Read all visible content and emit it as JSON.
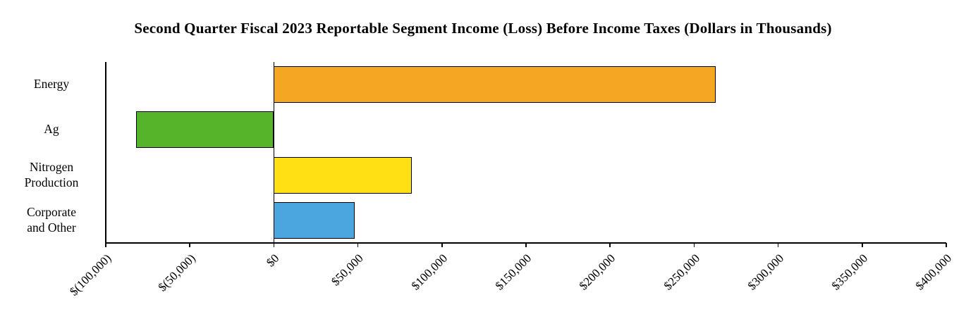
{
  "chart_data": {
    "type": "bar",
    "orientation": "horizontal",
    "title": "Second Quarter Fiscal 2023 Reportable Segment Income (Loss) Before Income Taxes (Dollars in Thousands)",
    "categories": [
      "Energy",
      "Ag",
      "Nitrogen Production",
      "Corporate and Other"
    ],
    "category_label_lines": [
      [
        "Energy"
      ],
      [
        "Ag"
      ],
      [
        "Nitrogen",
        "Production"
      ],
      [
        "Corporate",
        "and Other"
      ]
    ],
    "values": [
      263000,
      -82000,
      82000,
      48000
    ],
    "bar_colors": [
      "#F5A623",
      "#56B42B",
      "#FFE014",
      "#4BA6DF"
    ],
    "bar_border_color": "#000000",
    "xlabel": "",
    "ylabel": "",
    "xlim": [
      -100000,
      400000
    ],
    "tick_values": [
      -100000,
      -50000,
      0,
      50000,
      100000,
      150000,
      200000,
      250000,
      300000,
      350000,
      400000
    ],
    "tick_labels": [
      "$(100,000)",
      "$(50,000)",
      "$0",
      "$50,000",
      "$100,000",
      "$150,000",
      "$200,000",
      "$250,000",
      "$300,000",
      "$350,000",
      "$400,000"
    ],
    "grid": false,
    "legend": false
  }
}
